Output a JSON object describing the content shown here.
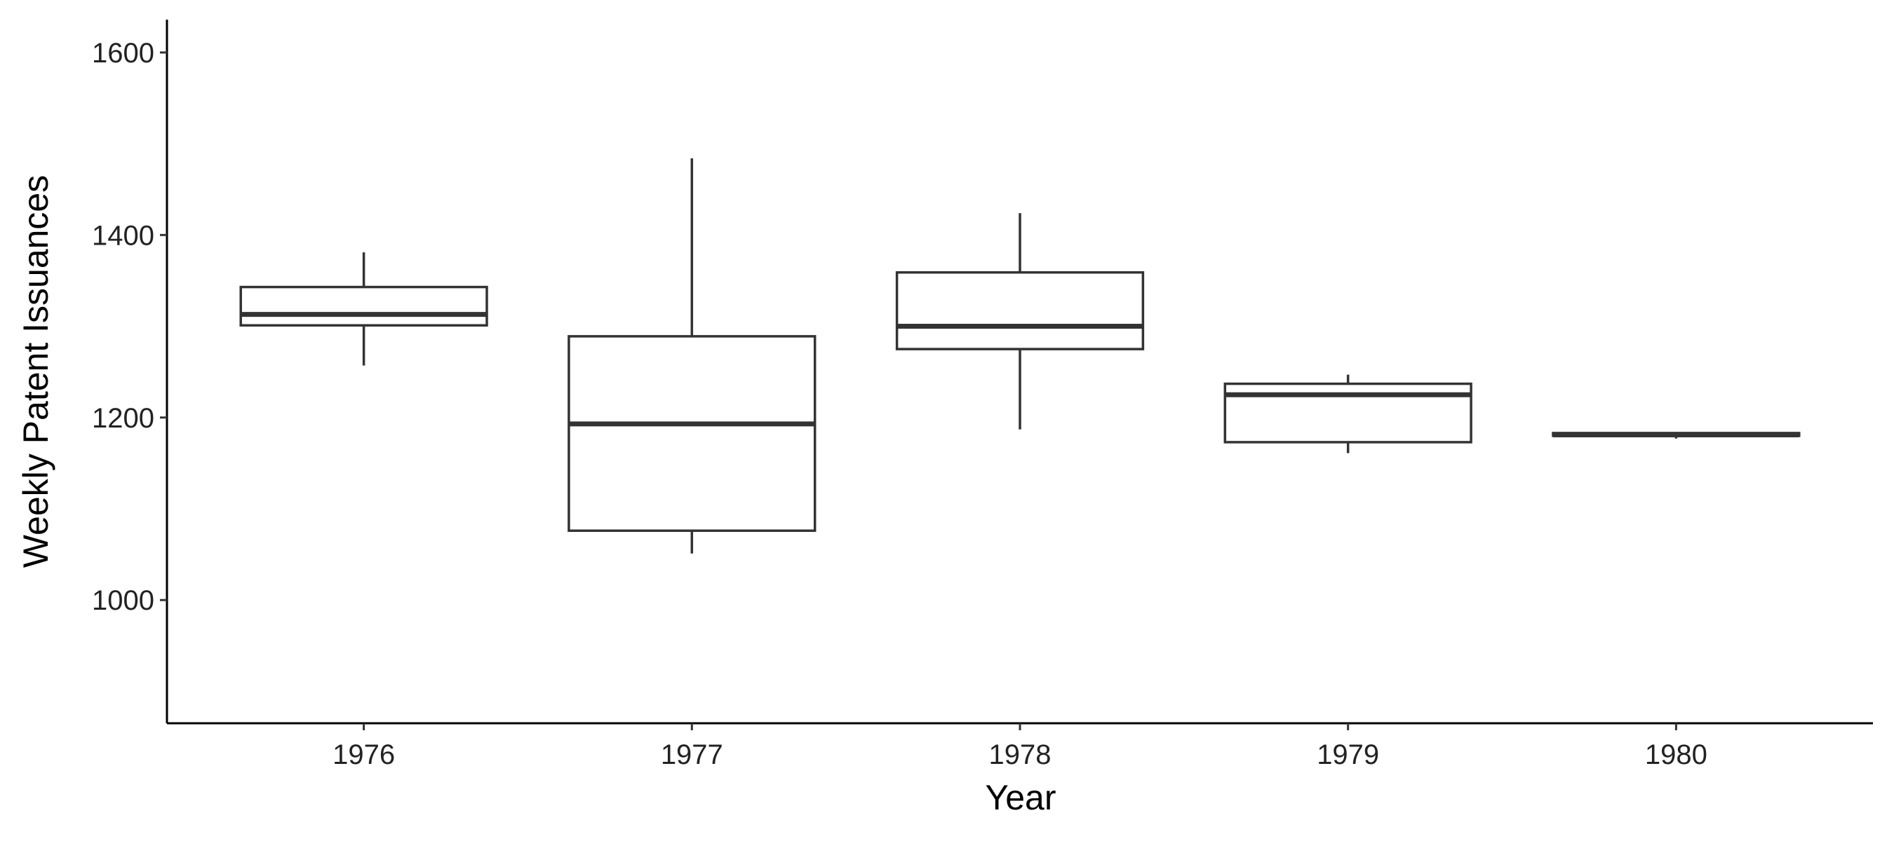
{
  "chart_data": {
    "type": "box",
    "x_label": "Year",
    "y_label": "Weekly Patent Issuances",
    "categories": [
      "1976",
      "1977",
      "1978",
      "1979",
      "1980"
    ],
    "min": [
      1257,
      1051,
      1187,
      1161,
      1177
    ],
    "q1": [
      1301,
      1076,
      1275,
      1173,
      1180
    ],
    "median": [
      1313,
      1193,
      1300,
      1225,
      1181
    ],
    "q3": [
      1343,
      1289,
      1359,
      1237,
      1183
    ],
    "max": [
      1381,
      1484,
      1424,
      1247,
      1183
    ],
    "color": "#333333",
    "ylim": [
      865,
      1636
    ],
    "yticks": [
      1000,
      1200,
      1400,
      1600
    ],
    "grid": false
  }
}
